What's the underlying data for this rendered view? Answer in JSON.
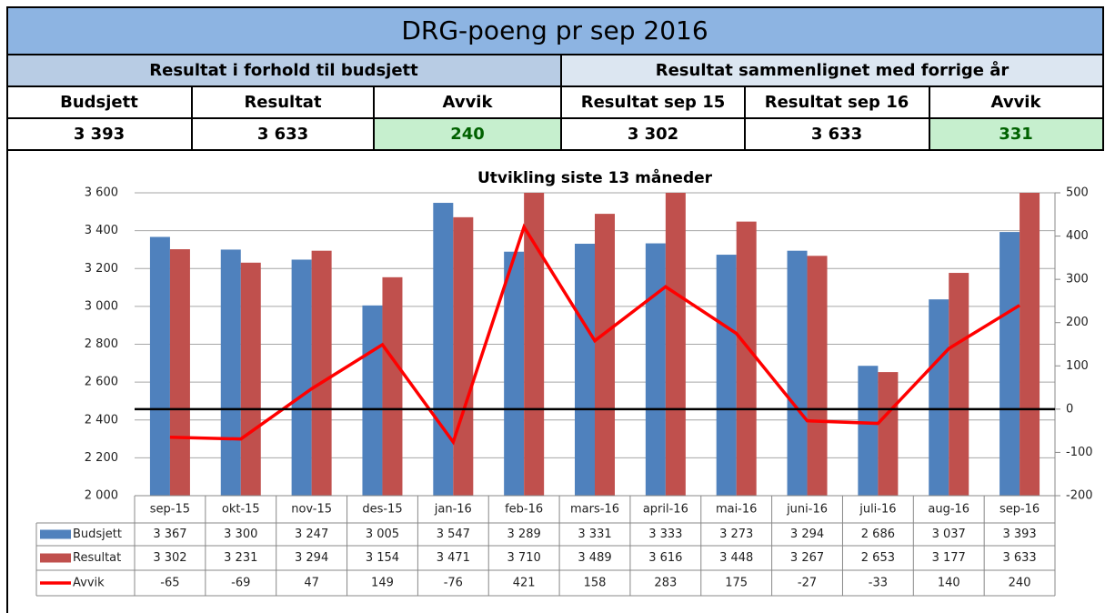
{
  "header": {
    "title": "DRG-poeng pr sep 2016",
    "sections": [
      "Resultat i forhold til budsjett",
      "Resultat sammenlignet med forrige år"
    ],
    "columns": [
      "Budsjett",
      "Resultat",
      "Avvik",
      "Resultat sep 15",
      "Resultat sep 16",
      "Avvik"
    ],
    "values": [
      "3 393",
      "3 633",
      "240",
      "3 302",
      "3 633",
      "331"
    ]
  },
  "chart_data": {
    "type": "bar",
    "title": "Utvikling siste 13 måneder",
    "categories": [
      "sep-15",
      "okt-15",
      "nov-15",
      "des-15",
      "jan-16",
      "feb-16",
      "mars-16",
      "april-16",
      "mai-16",
      "juni-16",
      "juli-16",
      "aug-16",
      "sep-16"
    ],
    "series": [
      {
        "name": "Budsjett",
        "color": "#4f81bd",
        "values": [
          3367,
          3300,
          3247,
          3005,
          3547,
          3289,
          3331,
          3333,
          3273,
          3294,
          2686,
          3037,
          3393
        ],
        "value_labels": [
          "3 367",
          "3 300",
          "3 247",
          "3 005",
          "3 547",
          "3 289",
          "3 331",
          "3 333",
          "3 273",
          "3 294",
          "2 686",
          "3 037",
          "3 393"
        ]
      },
      {
        "name": "Resultat",
        "color": "#c0504d",
        "values": [
          3302,
          3231,
          3294,
          3154,
          3471,
          3710,
          3489,
          3616,
          3448,
          3267,
          2653,
          3177,
          3633
        ],
        "value_labels": [
          "3 302",
          "3 231",
          "3 294",
          "3 154",
          "3 471",
          "3 710",
          "3 489",
          "3 616",
          "3 448",
          "3 267",
          "2 653",
          "3 177",
          "3 633"
        ]
      },
      {
        "name": "Avvik",
        "color": "#ff0000",
        "type": "line",
        "axis": "y2",
        "values": [
          -65,
          -69,
          47,
          149,
          -76,
          421,
          158,
          283,
          175,
          -27,
          -33,
          140,
          240
        ]
      }
    ],
    "ylim": [
      2000,
      3600
    ],
    "yticks": [
      {
        "value": 2000,
        "label": "2 000"
      },
      {
        "value": 2200,
        "label": "2 200"
      },
      {
        "value": 2400,
        "label": "2 400"
      },
      {
        "value": 2600,
        "label": "2 600"
      },
      {
        "value": 2800,
        "label": "2 800"
      },
      {
        "value": 3000,
        "label": "3 000"
      },
      {
        "value": 3200,
        "label": "3 200"
      },
      {
        "value": 3400,
        "label": "3 400"
      },
      {
        "value": 3600,
        "label": "3 600"
      }
    ],
    "y2lim": [
      -200,
      500
    ],
    "y2ticks": [
      -200,
      -100,
      0,
      100,
      200,
      300,
      400,
      500
    ],
    "grid": true
  }
}
